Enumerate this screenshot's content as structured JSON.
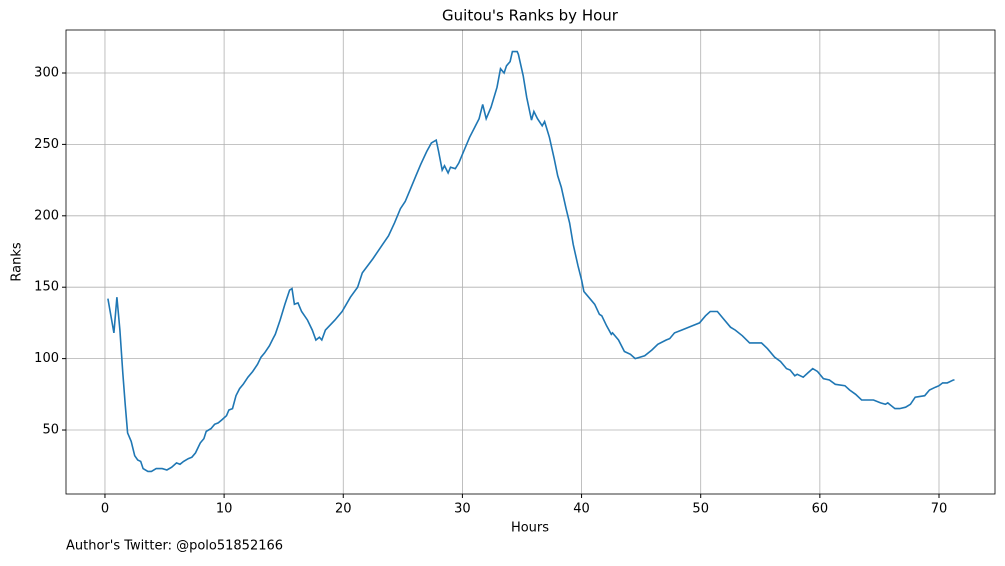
{
  "chart_data": {
    "type": "line",
    "title": "Guitou's Ranks by Hour",
    "xlabel": "Hours",
    "ylabel": "Ranks",
    "annotation": "Author's Twitter: @polo51852166",
    "xlim": [
      -3.27,
      74.7
    ],
    "ylim": [
      5.2,
      330.1
    ],
    "xticks": [
      0,
      10,
      20,
      30,
      40,
      50,
      60,
      70
    ],
    "yticks": [
      50,
      100,
      150,
      200,
      250,
      300
    ],
    "grid": true,
    "x": [
      0.25,
      0.5,
      0.75,
      1.0,
      1.25,
      1.5,
      1.7,
      1.9,
      2.2,
      2.5,
      2.75,
      3.0,
      3.2,
      3.6,
      3.9,
      4.3,
      4.8,
      5.2,
      5.6,
      6.0,
      6.3,
      6.6,
      7.0,
      7.3,
      7.6,
      8.0,
      8.3,
      8.5,
      8.9,
      9.2,
      9.5,
      9.8,
      10.2,
      10.4,
      10.7,
      11.0,
      11.3,
      11.6,
      12.0,
      12.4,
      12.8,
      13.1,
      13.4,
      13.8,
      14.1,
      14.3,
      14.7,
      15.1,
      15.5,
      15.7,
      15.9,
      16.2,
      16.5,
      17.0,
      17.4,
      17.7,
      18.0,
      18.2,
      18.5,
      19.3,
      19.9,
      20.6,
      21.2,
      21.6,
      22.5,
      23.3,
      23.8,
      24.3,
      24.8,
      25.2,
      25.6,
      26.1,
      26.5,
      27.0,
      27.4,
      27.8,
      28.0,
      28.3,
      28.5,
      28.8,
      29.0,
      29.4,
      29.7,
      30.1,
      30.6,
      31.1,
      31.4,
      31.7,
      32.0,
      32.4,
      32.9,
      33.2,
      33.5,
      33.7,
      34.0,
      34.2,
      34.6,
      34.7,
      35.1,
      35.4,
      35.7,
      35.8,
      36.0,
      36.3,
      36.7,
      36.9,
      37.3,
      37.7,
      38.0,
      38.3,
      38.7,
      39.0,
      39.3,
      39.7,
      40.0,
      40.2,
      40.6,
      41.1,
      41.5,
      41.7,
      42.1,
      42.5,
      42.6,
      43.1,
      43.6,
      44.1,
      44.5,
      45.3,
      45.9,
      46.4,
      47.1,
      47.4,
      47.8,
      48.4,
      49.3,
      49.9,
      50.4,
      50.8,
      51.4,
      51.9,
      52.5,
      52.9,
      53.5,
      54.1,
      55.1,
      55.6,
      56.2,
      56.7,
      57.2,
      57.5,
      57.9,
      58.1,
      58.6,
      59.0,
      59.4,
      59.8,
      60.3,
      60.8,
      61.3,
      62.1,
      62.5,
      63.0,
      63.5,
      64.5,
      65.1,
      65.5,
      65.7,
      66.3,
      66.7,
      67.2,
      67.6,
      68.0,
      68.8,
      69.2,
      69.7,
      70.0,
      70.3,
      70.7,
      71.2,
      71.3
    ],
    "series": [
      {
        "name": "Ranks",
        "color": "#1f77b4",
        "values": [
          142,
          130,
          118,
          143,
          120,
          90,
          68,
          48,
          42,
          32,
          29,
          28,
          23,
          21,
          21,
          23,
          23,
          22,
          24,
          27,
          26,
          28,
          30,
          31,
          34,
          41,
          44,
          49,
          51,
          54,
          55,
          57,
          60,
          64,
          65,
          74,
          79,
          82,
          87,
          91,
          96,
          101,
          104,
          109,
          114,
          117,
          127,
          138,
          148,
          149,
          138,
          139,
          133,
          127,
          120,
          113,
          115,
          113,
          120,
          127,
          133,
          143,
          150,
          160,
          170,
          180,
          186,
          195,
          205,
          210,
          218,
          228,
          236,
          245,
          251,
          253,
          245,
          232,
          235,
          230,
          234,
          233,
          237,
          245,
          255,
          263,
          268,
          278,
          268,
          276,
          290,
          303,
          300,
          305,
          308,
          315,
          315,
          313,
          298,
          283,
          271,
          267,
          273,
          268,
          263,
          266,
          255,
          240,
          228,
          220,
          205,
          195,
          180,
          165,
          155,
          147,
          143,
          138,
          131,
          130,
          123,
          117,
          118,
          113,
          105,
          103,
          100,
          102,
          106,
          110,
          113,
          114,
          118,
          120,
          123,
          125,
          130,
          133,
          133,
          128,
          122,
          120,
          116,
          111,
          111,
          107,
          101,
          98,
          93,
          92,
          88,
          89,
          87,
          90,
          93,
          91,
          86,
          85,
          82,
          81,
          78,
          75,
          71,
          71,
          69,
          68,
          69,
          65,
          65,
          66,
          68,
          73,
          74,
          78,
          80,
          81,
          83,
          83,
          85,
          85
        ]
      }
    ]
  }
}
